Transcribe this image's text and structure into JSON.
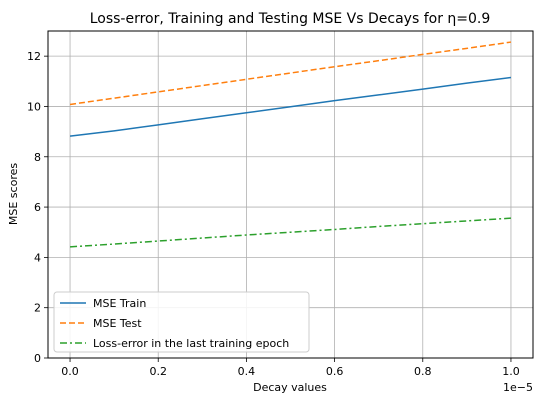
{
  "chart_data": {
    "type": "line",
    "title": "Loss-error, Training and Testing MSE Vs Decays for η=0.9",
    "xlabel": "Decay values",
    "ylabel": "MSE scores",
    "x_offset_label": "1e−5",
    "xlim": [
      -0.05,
      1.05
    ],
    "ylim": [
      0,
      13
    ],
    "x_ticks": [
      0.0,
      0.2,
      0.4,
      0.6,
      0.8,
      1.0
    ],
    "x_tick_labels": [
      "0.0",
      "0.2",
      "0.4",
      "0.6",
      "0.8",
      "1.0"
    ],
    "y_ticks": [
      0,
      2,
      4,
      6,
      8,
      10,
      12
    ],
    "y_tick_labels": [
      "0",
      "2",
      "4",
      "6",
      "8",
      "10",
      "12"
    ],
    "grid": true,
    "legend_position": "lower-left",
    "x": [
      0.0,
      0.1,
      0.2,
      0.3,
      0.4,
      0.5,
      0.6,
      0.7,
      0.8,
      0.9,
      1.0
    ],
    "series": [
      {
        "name": "MSE Train",
        "color": "#1f77b4",
        "dash": "solid",
        "values": [
          8.82,
          9.03,
          9.27,
          9.51,
          9.75,
          9.99,
          10.23,
          10.46,
          10.69,
          10.93,
          11.15
        ]
      },
      {
        "name": "MSE Test",
        "color": "#ff7f0e",
        "dash": "dashed",
        "values": [
          10.08,
          10.33,
          10.58,
          10.83,
          11.08,
          11.33,
          11.58,
          11.82,
          12.07,
          12.31,
          12.56
        ]
      },
      {
        "name": "Loss-error in the last training epoch",
        "color": "#2ca02c",
        "dash": "dashdot",
        "values": [
          4.42,
          4.53,
          4.65,
          4.77,
          4.89,
          5.0,
          5.11,
          5.23,
          5.34,
          5.45,
          5.56
        ]
      }
    ]
  }
}
